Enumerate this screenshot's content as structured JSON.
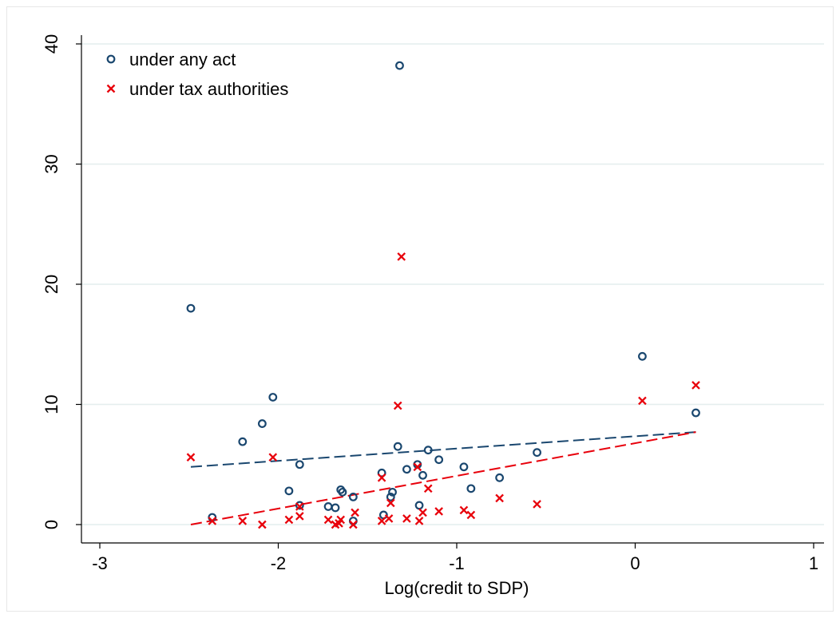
{
  "chart_data": {
    "type": "scatter",
    "title": "",
    "xlabel": "Log(credit to SDP)",
    "ylabel": "",
    "xlim": [
      -3,
      1
    ],
    "ylim": [
      0,
      40
    ],
    "x_ticks": [
      "-3",
      "-2",
      "-1",
      "0",
      "1"
    ],
    "y_ticks": [
      "0",
      "10",
      "20",
      "30",
      "40"
    ],
    "grid": "horizontal",
    "legend_position": "top-left",
    "series": [
      {
        "name": "under any act",
        "marker": "hollow-circle",
        "color": "#1a476f",
        "points": [
          [
            -2.49,
            18.0
          ],
          [
            -2.37,
            0.6
          ],
          [
            -2.2,
            6.9
          ],
          [
            -2.09,
            8.4
          ],
          [
            -2.03,
            10.6
          ],
          [
            -1.94,
            2.8
          ],
          [
            -1.88,
            5.0
          ],
          [
            -1.88,
            1.6
          ],
          [
            -1.72,
            1.5
          ],
          [
            -1.68,
            1.4
          ],
          [
            -1.65,
            2.9
          ],
          [
            -1.64,
            2.7
          ],
          [
            -1.58,
            2.3
          ],
          [
            -1.58,
            0.3
          ],
          [
            -1.42,
            4.3
          ],
          [
            -1.41,
            0.8
          ],
          [
            -1.37,
            2.3
          ],
          [
            -1.36,
            2.7
          ],
          [
            -1.33,
            6.5
          ],
          [
            -1.32,
            38.2
          ],
          [
            -1.28,
            4.6
          ],
          [
            -1.22,
            5.0
          ],
          [
            -1.21,
            1.6
          ],
          [
            -1.19,
            4.1
          ],
          [
            -1.16,
            6.2
          ],
          [
            -1.1,
            5.4
          ],
          [
            -0.96,
            4.8
          ],
          [
            -0.92,
            3.0
          ],
          [
            -0.76,
            3.9
          ],
          [
            -0.55,
            6.0
          ],
          [
            0.04,
            14.0
          ],
          [
            0.34,
            9.3
          ]
        ]
      },
      {
        "name": "under tax authorities",
        "marker": "x",
        "color": "#e8000b",
        "points": [
          [
            -2.49,
            5.6
          ],
          [
            -2.37,
            0.3
          ],
          [
            -2.2,
            0.3
          ],
          [
            -2.09,
            0.0
          ],
          [
            -2.03,
            5.6
          ],
          [
            -1.94,
            0.4
          ],
          [
            -1.88,
            0.7
          ],
          [
            -1.88,
            1.5
          ],
          [
            -1.72,
            0.4
          ],
          [
            -1.68,
            0.0
          ],
          [
            -1.66,
            0.1
          ],
          [
            -1.65,
            0.4
          ],
          [
            -1.58,
            0.0
          ],
          [
            -1.57,
            1.0
          ],
          [
            -1.42,
            3.9
          ],
          [
            -1.42,
            0.3
          ],
          [
            -1.38,
            0.5
          ],
          [
            -1.37,
            1.8
          ],
          [
            -1.33,
            9.9
          ],
          [
            -1.31,
            22.3
          ],
          [
            -1.28,
            0.5
          ],
          [
            -1.22,
            4.8
          ],
          [
            -1.21,
            0.3
          ],
          [
            -1.19,
            1.0
          ],
          [
            -1.16,
            3.0
          ],
          [
            -1.1,
            1.1
          ],
          [
            -0.96,
            1.2
          ],
          [
            -0.92,
            0.8
          ],
          [
            -0.76,
            2.2
          ],
          [
            -0.55,
            1.7
          ],
          [
            0.04,
            10.3
          ],
          [
            0.34,
            11.6
          ]
        ]
      }
    ],
    "fit_lines": [
      {
        "series": "under any act",
        "color": "#1a476f",
        "style": "dashed",
        "from": [
          -2.49,
          4.8
        ],
        "to": [
          0.34,
          7.7
        ]
      },
      {
        "series": "under tax authorities",
        "color": "#e8000b",
        "style": "dashed",
        "from": [
          -2.49,
          0.0
        ],
        "to": [
          0.34,
          7.7
        ]
      }
    ]
  }
}
